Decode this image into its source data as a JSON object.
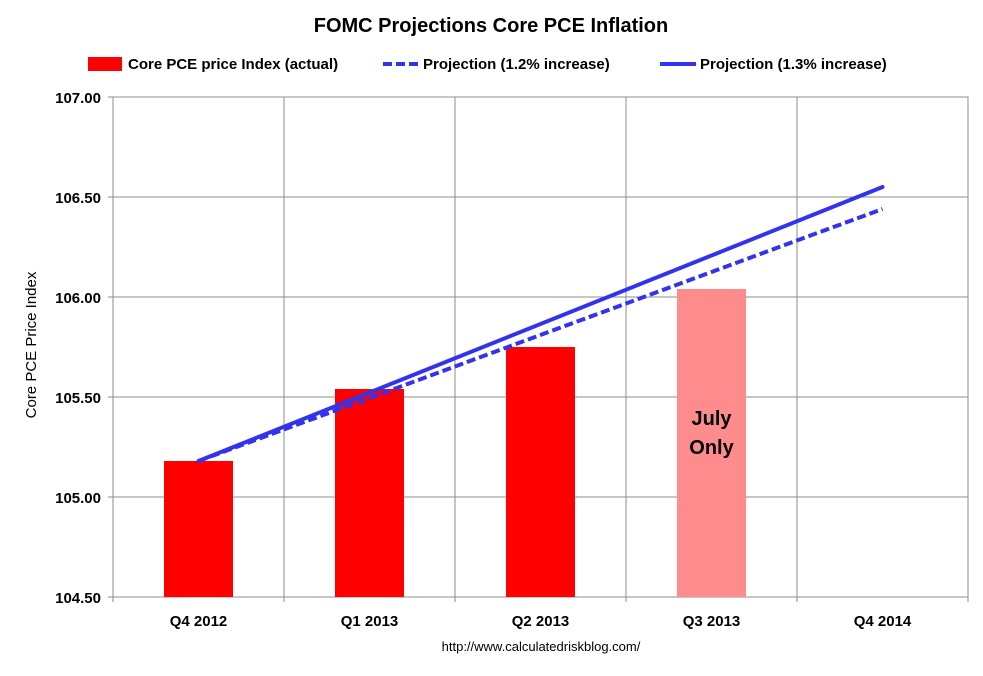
{
  "chart_data": {
    "type": "bar",
    "title": "FOMC Projections Core PCE Inflation",
    "xlabel": "",
    "ylabel": "Core PCE Price Index",
    "ylim": [
      104.5,
      107.0
    ],
    "ytick_step": 0.5,
    "ytick_labels": [
      "104.50",
      "105.00",
      "105.50",
      "106.00",
      "106.50",
      "107.00"
    ],
    "grid": true,
    "legend_position": "top",
    "categories": [
      "Q4 2012",
      "Q1 2013",
      "Q2 2013",
      "Q3 2013",
      "Q4 2014"
    ],
    "bar_series": {
      "name": "Core PCE price Index (actual)",
      "values": [
        105.18,
        105.54,
        105.75,
        106.04,
        null
      ],
      "color": "#ff0000",
      "highlight_color": "#ff8c8c",
      "highlight_index": 3
    },
    "line_series": [
      {
        "name": "Projection (1.2% increase)",
        "style": "dashed",
        "color": "#3333ee",
        "start": {
          "x": "Q4 2012",
          "y": 105.18
        },
        "end": {
          "x": "Q4 2014",
          "y": 106.44
        }
      },
      {
        "name": "Projection (1.3% increase)",
        "style": "solid",
        "color": "#3333ee",
        "start": {
          "x": "Q4 2012",
          "y": 105.18
        },
        "end": {
          "x": "Q4 2014",
          "y": 106.55
        }
      }
    ],
    "annotations": [
      {
        "text_lines": [
          "July",
          "Only"
        ],
        "category": "Q3 2013"
      }
    ],
    "source": "http://www.calculatedriskblog.com/"
  }
}
